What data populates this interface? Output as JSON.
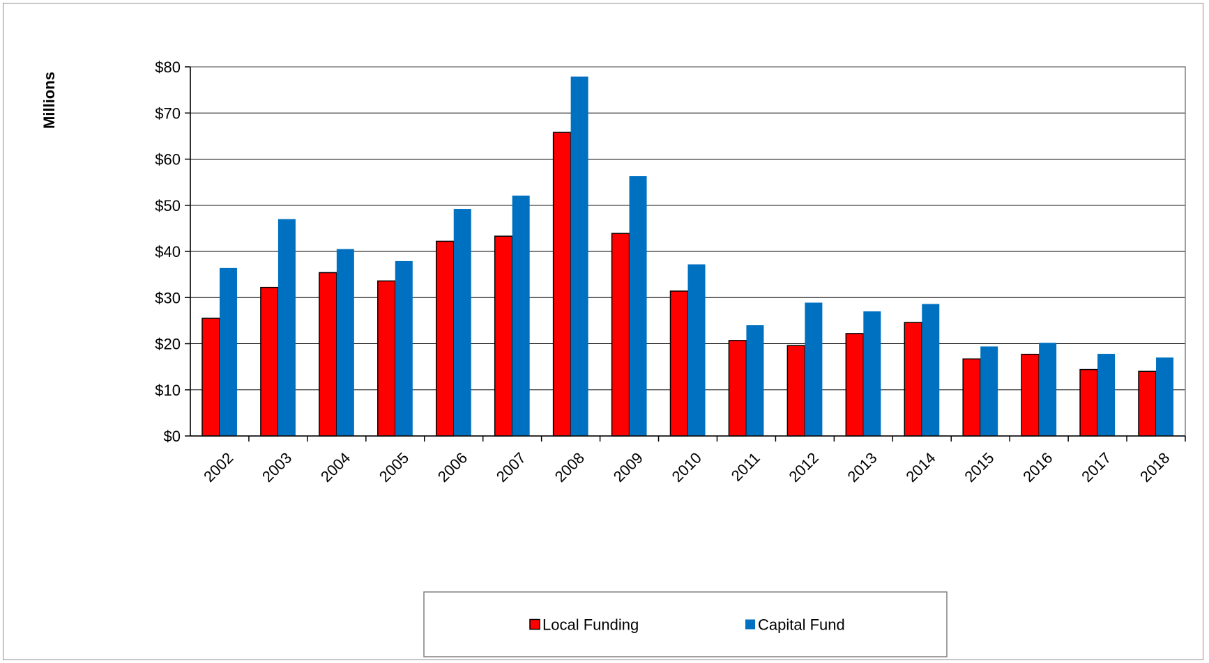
{
  "chart_data": {
    "type": "bar",
    "ylabel": "Millions",
    "xlabel": "",
    "title": "",
    "ylim": [
      0,
      80
    ],
    "yticks": [
      0,
      10,
      20,
      30,
      40,
      50,
      60,
      70,
      80
    ],
    "ytick_labels": [
      "$0",
      "$10",
      "$20",
      "$30",
      "$40",
      "$50",
      "$60",
      "$70",
      "$80"
    ],
    "categories": [
      "2002",
      "2003",
      "2004",
      "2005",
      "2006",
      "2007",
      "2008",
      "2009",
      "2010",
      "2011",
      "2012",
      "2013",
      "2014",
      "2015",
      "2016",
      "2017",
      "2018"
    ],
    "series": [
      {
        "name": "Local Funding",
        "color": "#ff0000",
        "values": [
          25.5,
          32.2,
          35.4,
          33.6,
          42.2,
          43.3,
          65.8,
          43.9,
          31.4,
          20.7,
          19.6,
          22.2,
          24.6,
          16.7,
          17.7,
          14.4,
          14.0
        ]
      },
      {
        "name": "Capital Fund",
        "color": "#0070c0",
        "values": [
          36.4,
          47.0,
          40.5,
          37.9,
          49.2,
          52.1,
          77.9,
          56.3,
          37.2,
          24.0,
          28.9,
          27.0,
          28.6,
          19.4,
          20.2,
          17.8,
          17.0
        ]
      }
    ],
    "grid": true,
    "legend": "bottom-center"
  }
}
